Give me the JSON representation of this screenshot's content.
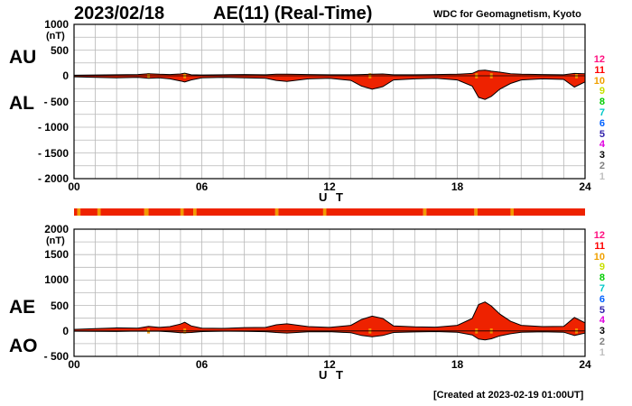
{
  "header": {
    "date": "2023/02/18",
    "title": "AE(11) (Real-Time)",
    "source": "WDC for Geomagnetism, Kyoto"
  },
  "footer": {
    "created": "[Created at 2023-02-19 01:00UT]"
  },
  "colors": {
    "fill_red": "#ee2200",
    "fill_orange": "#f29b00",
    "grid": "#b8b8b8",
    "legend": [
      "#bfbfbf",
      "#7f7f7f",
      "#000000",
      "#e000e0",
      "#2e1ea8",
      "#0060ff",
      "#00c8c8",
      "#00cc00",
      "#c8e000",
      "#f0a000",
      "#ff0000",
      "#ff1080"
    ]
  },
  "legend_labels": [
    "1",
    "2",
    "3",
    "4",
    "5",
    "6",
    "7",
    "8",
    "9",
    "10",
    "11",
    "12"
  ],
  "chart_data": [
    {
      "type": "area",
      "name": "AU/AL",
      "series_labels": [
        "AU",
        "AL"
      ],
      "unit": "(nT)",
      "xlabel": "U T",
      "xticks": [
        "00",
        "06",
        "12",
        "18",
        "24"
      ],
      "yticks": [
        "1000",
        "500",
        "0",
        "- 500",
        "- 1000",
        "- 1500",
        "- 2000"
      ],
      "xlim": [
        0,
        24
      ],
      "ylim": [
        -2000,
        1000
      ],
      "grid": true,
      "series": [
        {
          "name": "AU",
          "x": [
            0,
            1,
            2,
            3,
            3.5,
            4,
            4.5,
            5,
            5.2,
            5.5,
            6,
            7,
            8,
            9,
            9.5,
            10,
            11,
            12,
            13,
            13.5,
            14,
            14.5,
            15,
            16,
            17,
            18,
            18.7,
            19,
            19.3,
            19.6,
            20,
            20.5,
            21,
            22,
            23,
            23.5,
            24
          ],
          "values": [
            10,
            15,
            20,
            25,
            40,
            30,
            25,
            35,
            50,
            20,
            15,
            20,
            25,
            20,
            30,
            30,
            25,
            20,
            20,
            25,
            30,
            35,
            20,
            20,
            25,
            30,
            45,
            100,
            110,
            90,
            70,
            40,
            30,
            25,
            20,
            45,
            40
          ]
        },
        {
          "name": "AL",
          "x": [
            0,
            1,
            2,
            3,
            3.5,
            4,
            4.5,
            5,
            5.2,
            5.5,
            6,
            7,
            8,
            9,
            9.5,
            10,
            11,
            12,
            13,
            13.5,
            14,
            14.5,
            15,
            16,
            17,
            18,
            18.7,
            19,
            19.3,
            19.6,
            20,
            20.5,
            21,
            22,
            23,
            23.5,
            24
          ],
          "values": [
            -20,
            -30,
            -40,
            -30,
            -50,
            -40,
            -60,
            -100,
            -120,
            -80,
            -40,
            -30,
            -40,
            -50,
            -90,
            -110,
            -60,
            -50,
            -90,
            -200,
            -260,
            -210,
            -80,
            -60,
            -50,
            -80,
            -200,
            -420,
            -460,
            -400,
            -260,
            -150,
            -80,
            -60,
            -70,
            -220,
            -120
          ]
        }
      ]
    },
    {
      "type": "area",
      "name": "AE/AO",
      "series_labels": [
        "AE",
        "AO"
      ],
      "unit": "(nT)",
      "xlabel": "U T",
      "xticks": [
        "00",
        "06",
        "12",
        "18",
        "24"
      ],
      "yticks": [
        "2000",
        "1500",
        "1000",
        "500",
        "0",
        "- 500"
      ],
      "xlim": [
        0,
        24
      ],
      "ylim": [
        -500,
        2000
      ],
      "grid": true,
      "series": [
        {
          "name": "AE",
          "x": [
            0,
            1,
            2,
            3,
            3.5,
            4,
            4.5,
            5,
            5.2,
            5.5,
            6,
            7,
            8,
            9,
            9.5,
            10,
            11,
            12,
            13,
            13.5,
            14,
            14.5,
            15,
            16,
            17,
            18,
            18.7,
            19,
            19.3,
            19.6,
            20,
            20.5,
            21,
            22,
            23,
            23.5,
            24
          ],
          "values": [
            30,
            45,
            60,
            55,
            90,
            70,
            85,
            135,
            170,
            100,
            55,
            50,
            65,
            70,
            120,
            140,
            85,
            70,
            110,
            225,
            290,
            245,
            100,
            80,
            75,
            110,
            245,
            520,
            570,
            490,
            330,
            190,
            110,
            85,
            90,
            265,
            160
          ]
        },
        {
          "name": "AO",
          "x": [
            0,
            1,
            2,
            3,
            3.5,
            4,
            4.5,
            5,
            5.2,
            5.5,
            6,
            7,
            8,
            9,
            9.5,
            10,
            11,
            12,
            13,
            13.5,
            14,
            14.5,
            15,
            16,
            17,
            18,
            18.7,
            19,
            19.3,
            19.6,
            20,
            20.5,
            21,
            22,
            23,
            23.5,
            24
          ],
          "values": [
            -5,
            -8,
            -10,
            -3,
            -5,
            -5,
            -18,
            -33,
            -35,
            -30,
            -13,
            -5,
            -8,
            -15,
            -30,
            -40,
            -18,
            -15,
            -35,
            -88,
            -115,
            -88,
            -30,
            -20,
            -13,
            -25,
            -78,
            -160,
            -175,
            -155,
            -95,
            -55,
            -25,
            -18,
            -25,
            -88,
            -40
          ]
        }
      ]
    }
  ],
  "status_bar": {
    "segments": [
      "red",
      "orange",
      "red",
      "orange",
      "red",
      "orange",
      "red",
      "orange",
      "red",
      "orange",
      "red",
      "orange",
      "red",
      "orange",
      "red",
      "orange",
      "red",
      "orange",
      "red",
      "orange",
      "red"
    ],
    "boundaries_ut": [
      0,
      0.15,
      0.3,
      1.1,
      1.25,
      3.3,
      3.5,
      5.0,
      5.15,
      5.6,
      5.75,
      9.45,
      9.6,
      11.7,
      11.85,
      16.4,
      16.55,
      18.8,
      18.95,
      20.5,
      20.65,
      24
    ]
  }
}
